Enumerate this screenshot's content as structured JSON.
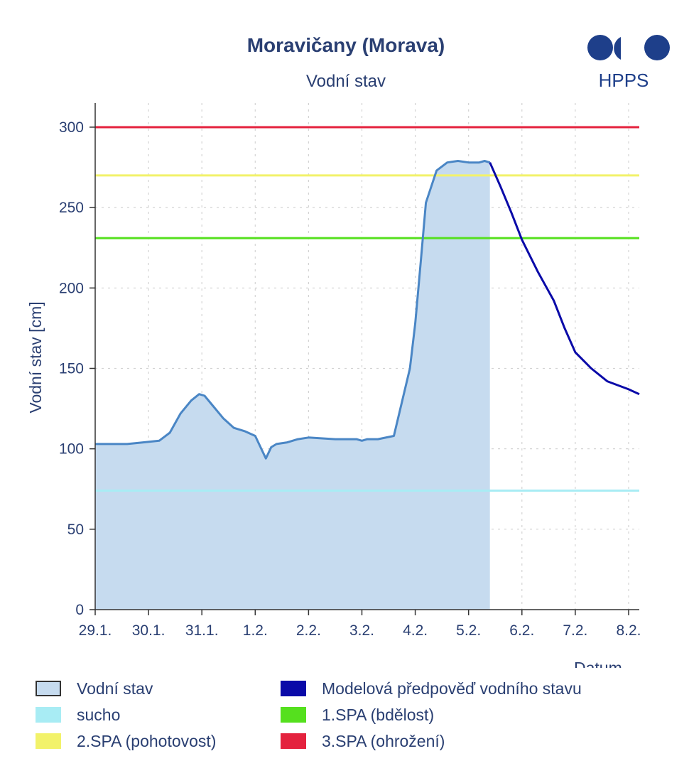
{
  "chart_data": {
    "type": "line",
    "title": "Moravičany (Morava)",
    "subtitle": "Vodní stav",
    "ylabel": "Vodní stav [cm]",
    "xlabel": "Datum",
    "ylim": [
      0,
      315
    ],
    "yticks": [
      0,
      50,
      100,
      150,
      200,
      250,
      300
    ],
    "xlim": [
      0,
      10.2
    ],
    "xtick_labels": [
      "29.1.",
      "30.1.",
      "31.1.",
      "1.2.",
      "2.2.",
      "3.2.",
      "4.2.",
      "5.2.",
      "6.2.",
      "7.2.",
      "8.2."
    ],
    "grid": true,
    "logo": "HPPS",
    "series": [
      {
        "name": "Vodní stav",
        "kind": "area",
        "color": "#4a86c5",
        "fill": "#c6dbef",
        "x": [
          0,
          0.3,
          0.6,
          0.9,
          1.2,
          1.4,
          1.6,
          1.8,
          1.95,
          2.05,
          2.2,
          2.4,
          2.6,
          2.8,
          3.0,
          3.1,
          3.2,
          3.3,
          3.4,
          3.6,
          3.8,
          4.0,
          4.5,
          4.9,
          5.0,
          5.1,
          5.3,
          5.6,
          5.9,
          6.0,
          6.1,
          6.2,
          6.4,
          6.6,
          6.8,
          7.0,
          7.2,
          7.3,
          7.4
        ],
        "y": [
          103,
          103,
          103,
          104,
          105,
          110,
          122,
          130,
          134,
          133,
          127,
          119,
          113,
          111,
          108,
          101,
          94,
          101,
          103,
          104,
          106,
          107,
          106,
          106,
          105,
          106,
          106,
          108,
          150,
          178,
          215,
          253,
          273,
          278,
          279,
          278,
          278,
          279,
          278
        ]
      },
      {
        "name": "Modelová předpověď vodního stavu",
        "kind": "line",
        "color": "#0a0aa8",
        "x": [
          7.4,
          7.6,
          7.8,
          8.0,
          8.3,
          8.6,
          8.8,
          9.0,
          9.3,
          9.6,
          10.0,
          10.2
        ],
        "y": [
          278,
          263,
          247,
          230,
          210,
          192,
          175,
          160,
          150,
          142,
          137,
          134
        ]
      }
    ],
    "thresholds": [
      {
        "name": "sucho",
        "value": 74,
        "color": "#a8ecf4"
      },
      {
        "name": "1.SPA (bdělost)",
        "value": 231,
        "color": "#55e01e"
      },
      {
        "name": "2.SPA (pohotovost)",
        "value": 270,
        "color": "#f2f26a"
      },
      {
        "name": "3.SPA (ohrožení)",
        "value": 300,
        "color": "#e4223e"
      }
    ]
  },
  "legend": {
    "vodni_stav": "Vodní stav",
    "model": "Modelová předpověď vodního stavu",
    "sucho": "sucho",
    "spa1": "1.SPA (bdělost)",
    "spa2": "2.SPA (pohotovost)",
    "spa3": "3.SPA (ohrožení)"
  }
}
